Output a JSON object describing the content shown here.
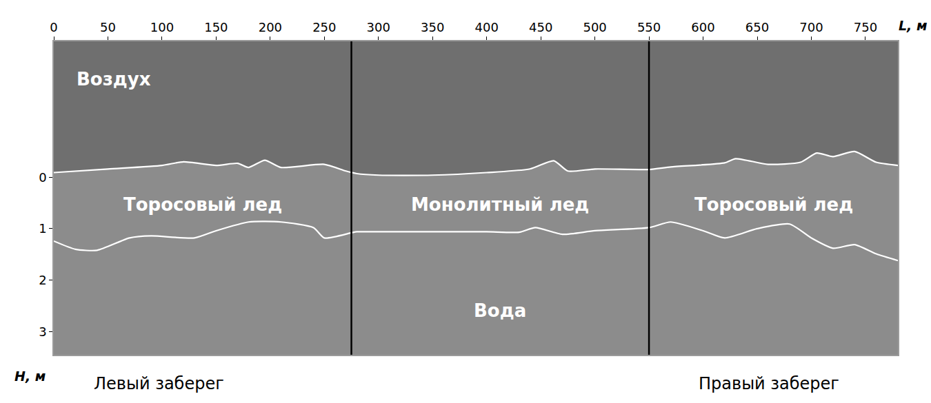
{
  "chart_data": {
    "type": "line",
    "x_label": "L, м",
    "y_label": "H, м",
    "xlim": [
      0,
      780
    ],
    "ylim": [
      3.45,
      -2.64
    ],
    "xticks": [
      0,
      50,
      100,
      150,
      200,
      250,
      300,
      350,
      400,
      450,
      500,
      550,
      600,
      650,
      700,
      750
    ],
    "yticks": [
      0,
      1,
      2,
      3
    ],
    "grid": false,
    "regions": {
      "air": "Воздух",
      "water": "Вода"
    },
    "zones": [
      "Торосовый лед",
      "Монолитный лед",
      "Торосовый лед"
    ],
    "boundaries": [
      275,
      550
    ],
    "footer": [
      "Левый заберег",
      "Правый заберег"
    ],
    "series": [
      {
        "color": "#ffffff",
        "x": [
          0,
          50,
          100,
          120,
          150,
          170,
          180,
          195,
          210,
          250,
          270,
          280,
          300,
          350,
          400,
          440,
          462,
          475,
          500,
          550,
          570,
          620,
          630,
          660,
          690,
          705,
          720,
          740,
          760,
          780
        ],
        "values": [
          -0.09,
          -0.16,
          -0.23,
          -0.3,
          -0.23,
          -0.27,
          -0.19,
          -0.33,
          -0.19,
          -0.25,
          -0.12,
          -0.07,
          -0.04,
          -0.04,
          -0.09,
          -0.16,
          -0.32,
          -0.12,
          -0.16,
          -0.15,
          -0.2,
          -0.28,
          -0.36,
          -0.25,
          -0.29,
          -0.47,
          -0.4,
          -0.5,
          -0.29,
          -0.23
        ]
      },
      {
        "color": "#ffffff",
        "x": [
          0,
          20,
          40,
          70,
          90,
          130,
          150,
          180,
          210,
          240,
          250,
          275,
          280,
          300,
          350,
          400,
          430,
          445,
          470,
          500,
          550,
          570,
          600,
          620,
          650,
          680,
          700,
          720,
          740,
          760,
          780
        ],
        "values": [
          1.24,
          1.4,
          1.42,
          1.18,
          1.14,
          1.18,
          1.04,
          0.87,
          0.87,
          0.98,
          1.18,
          1.08,
          1.06,
          1.06,
          1.06,
          1.06,
          1.07,
          0.98,
          1.11,
          1.04,
          0.98,
          0.87,
          1.04,
          1.18,
          1.0,
          0.91,
          1.18,
          1.38,
          1.31,
          1.49,
          1.62
        ]
      }
    ]
  }
}
